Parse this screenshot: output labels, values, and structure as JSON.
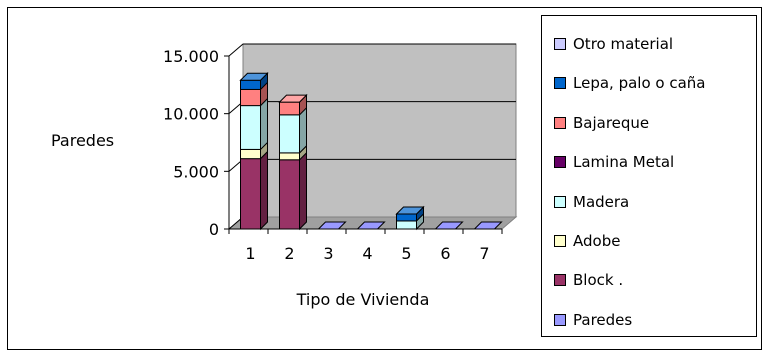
{
  "chart_data": {
    "type": "bar",
    "stacked": true,
    "three_d": true,
    "categories": [
      "1",
      "2",
      "3",
      "4",
      "5",
      "6",
      "7"
    ],
    "ylabel": "Paredes",
    "xlabel": "Tipo de Vivienda",
    "ylim": [
      0,
      15000
    ],
    "yticks": [
      0,
      5000,
      10000,
      15000
    ],
    "ytick_labels": [
      "0",
      "5.000",
      "10.000",
      "15.000"
    ],
    "grid": true,
    "legend_position": "right",
    "series": [
      {
        "name": "Paredes",
        "color": "#9999ff",
        "values": [
          0,
          0,
          0,
          0,
          0,
          0,
          0
        ]
      },
      {
        "name": "Block .",
        "color": "#993366",
        "values": [
          6100,
          6000,
          0,
          0,
          0,
          0,
          0
        ]
      },
      {
        "name": "Adobe",
        "color": "#ffffcc",
        "values": [
          800,
          600,
          0,
          0,
          0,
          0,
          0
        ]
      },
      {
        "name": "Madera",
        "color": "#ccffff",
        "values": [
          3800,
          3300,
          0,
          0,
          700,
          0,
          0
        ]
      },
      {
        "name": "Lamina Metal",
        "color": "#660066",
        "values": [
          0,
          0,
          0,
          0,
          0,
          0,
          0
        ]
      },
      {
        "name": "Bajareque",
        "color": "#ff8080",
        "values": [
          1400,
          1100,
          0,
          0,
          0,
          0,
          0
        ]
      },
      {
        "name": "Lepa, palo o caña",
        "color": "#0066cc",
        "values": [
          800,
          0,
          0,
          0,
          600,
          0,
          0
        ]
      },
      {
        "name": "Otro material",
        "color": "#ccccff",
        "values": [
          0,
          0,
          0,
          0,
          0,
          0,
          0
        ]
      }
    ]
  }
}
